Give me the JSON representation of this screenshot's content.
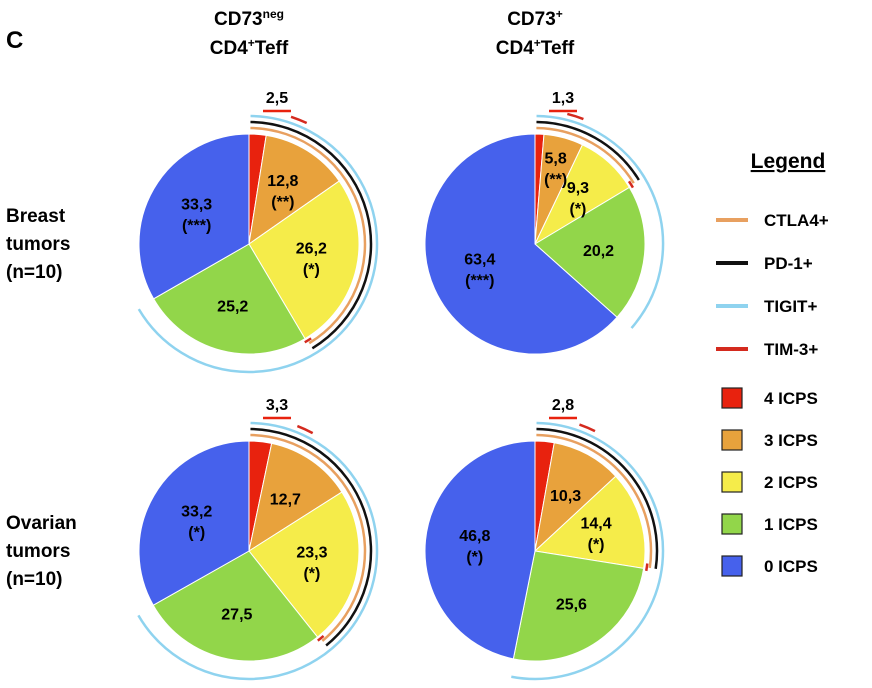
{
  "panel_letter": "C",
  "chart_data": {
    "type": "pie",
    "columns": [
      {
        "title_main": "CD73",
        "title_sup": "neg",
        "title_line2_a": "CD4",
        "title_line2_sup": "+",
        "title_line2_b": "Teff"
      },
      {
        "title_main": "CD73",
        "title_sup": "+",
        "title_line2_a": "CD4",
        "title_line2_sup": "+",
        "title_line2_b": "Teff"
      }
    ],
    "rows": [
      {
        "label_lines": [
          "Breast",
          "tumors",
          "(n=10)"
        ]
      },
      {
        "label_lines": [
          "Ovarian",
          "tumors",
          "(n=10)"
        ]
      }
    ],
    "categories": [
      "4 ICPS",
      "3 ICPS",
      "2 ICPS",
      "1 ICPS",
      "0 ICPS"
    ],
    "colors": [
      "#e8220e",
      "#e8a23c",
      "#f5ec4a",
      "#92d64a",
      "#4661ec"
    ],
    "pies": [
      {
        "row": 0,
        "col": 0,
        "values": [
          2.5,
          12.8,
          26.2,
          25.2,
          33.3
        ],
        "labels": [
          "2,5",
          "12,8",
          "26,2",
          "25,2",
          "33,3"
        ],
        "significance": [
          "",
          "(**)",
          "(*)",
          "",
          "(***)"
        ]
      },
      {
        "row": 0,
        "col": 1,
        "values": [
          1.3,
          5.8,
          9.3,
          20.2,
          63.4
        ],
        "labels": [
          "1,3",
          "5,8",
          "9,3",
          "20,2",
          "63,4"
        ],
        "significance": [
          "",
          "(**)",
          "(*)",
          "",
          "(***)"
        ]
      },
      {
        "row": 1,
        "col": 0,
        "values": [
          3.3,
          12.7,
          23.3,
          27.5,
          33.2
        ],
        "labels": [
          "3,3",
          "12,7",
          "23,3",
          "27,5",
          "33,2"
        ],
        "significance": [
          "",
          "",
          "(*)",
          "",
          "(*)"
        ]
      },
      {
        "row": 1,
        "col": 1,
        "values": [
          2.8,
          10.3,
          14.4,
          25.6,
          46.8
        ],
        "labels": [
          "2,8",
          "10,3",
          "14,4",
          "25,6",
          "46,8"
        ],
        "significance": [
          "",
          "",
          "(*)",
          "",
          "(*)"
        ]
      }
    ],
    "marker_legend": [
      {
        "name": "CTLA4+",
        "color": "#e8a060"
      },
      {
        "name": "PD-1+",
        "color": "#111111"
      },
      {
        "name": "TIGIT+",
        "color": "#8fd3ef"
      },
      {
        "name": "TIM-3+",
        "color": "#d42a1e"
      }
    ],
    "legend_title": "Legend",
    "legend_placement": "right"
  }
}
